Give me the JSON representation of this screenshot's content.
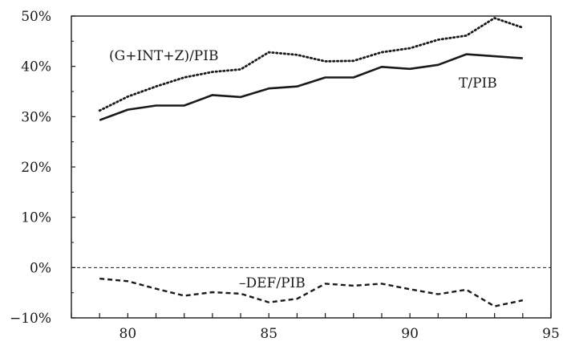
{
  "chart_data": {
    "type": "line",
    "title": "",
    "xlabel": "",
    "ylabel": "",
    "xlim": [
      78,
      95
    ],
    "ylim": [
      -10,
      50
    ],
    "x_ticks": [
      80,
      85,
      90,
      95
    ],
    "y_ticks": [
      -10,
      0,
      10,
      20,
      30,
      40,
      50
    ],
    "x_tick_labels": [
      "80",
      "85",
      "90",
      "95"
    ],
    "y_tick_labels": [
      "−10%",
      "0%",
      "10%",
      "20%",
      "30%",
      "40%",
      "50%"
    ],
    "grid": false,
    "reference_line": {
      "y": 0,
      "style": "dashed"
    },
    "x": [
      79,
      80,
      81,
      82,
      83,
      84,
      85,
      86,
      87,
      88,
      89,
      90,
      91,
      92,
      93,
      94
    ],
    "series": [
      {
        "name": "(G+INT+Z)/PIB",
        "style": "dotted",
        "color": "#1a1a1a",
        "values": [
          31.2,
          34.0,
          36.0,
          37.8,
          38.9,
          39.4,
          42.8,
          42.3,
          41.0,
          41.1,
          42.8,
          43.6,
          45.3,
          46.1,
          49.6,
          47.7
        ]
      },
      {
        "name": "T/PIB",
        "style": "solid",
        "color": "#1a1a1a",
        "values": [
          29.3,
          31.4,
          32.2,
          32.2,
          34.3,
          33.9,
          35.6,
          36.0,
          37.8,
          37.8,
          39.9,
          39.5,
          40.3,
          42.4,
          42.0,
          41.6
        ]
      },
      {
        "name": "–DEF/PIB",
        "style": "dashed",
        "color": "#1a1a1a",
        "values": [
          -2.2,
          -2.7,
          -4.2,
          -5.6,
          -4.9,
          -5.2,
          -6.9,
          -6.2,
          -3.2,
          -3.6,
          -3.2,
          -4.3,
          -5.3,
          -4.4,
          -7.7,
          -6.5
        ]
      }
    ]
  }
}
